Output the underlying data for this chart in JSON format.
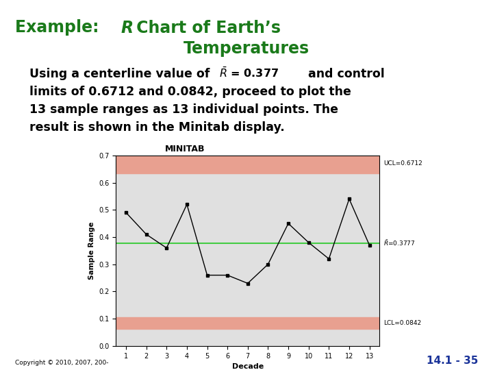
{
  "title_color": "#1a7a1a",
  "left_bar_color": "#2d6b2d",
  "background": "#ffffff",
  "data_x": [
    1,
    2,
    3,
    4,
    5,
    6,
    7,
    8,
    9,
    10,
    11,
    12,
    13
  ],
  "data_y": [
    0.49,
    0.41,
    0.36,
    0.52,
    0.26,
    0.26,
    0.23,
    0.3,
    0.45,
    0.38,
    0.32,
    0.54,
    0.37
  ],
  "ucl": 0.6712,
  "lcl": 0.0842,
  "cl": 0.3777,
  "ucl_label": "UCL=0.6712",
  "lcl_label": "LCL=0.0842",
  "cl_label": "̅R=0.3777",
  "plot_xlabel": "Decade",
  "plot_ylabel": "Sample Range",
  "band_color": "#e8a090",
  "cl_color": "#44cc44",
  "line_color": "#000000",
  "plot_bg": "#e0e0e0",
  "ylim": [
    0.0,
    0.7
  ],
  "yticks": [
    0.0,
    0.1,
    0.2,
    0.3,
    0.4,
    0.5,
    0.6,
    0.7
  ],
  "minitab_label": "MINITAB",
  "copyright": "Copyright © 2010, 2007, 200-",
  "page_num": "14.1 - 35",
  "page_num_color": "#1a3399"
}
